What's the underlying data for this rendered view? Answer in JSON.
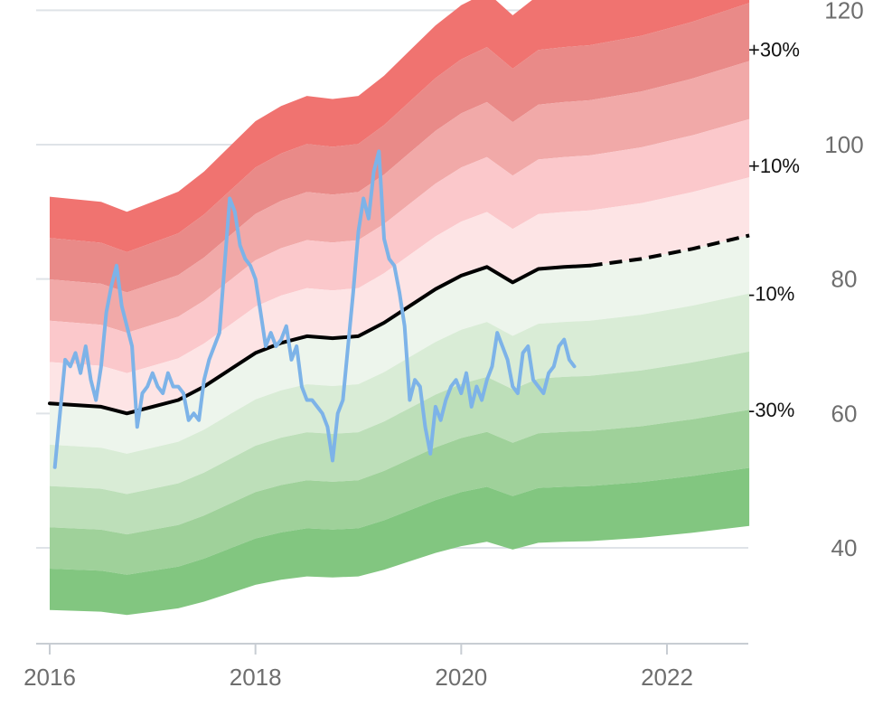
{
  "chart_data": {
    "type": "area",
    "title": "",
    "xlabel": "",
    "ylabel": "",
    "xlim": [
      2016.0,
      2022.8
    ],
    "ylim": [
      30,
      120
    ],
    "grid": true,
    "legend": "none",
    "x_ticks": [
      2016,
      2018,
      2020,
      2022
    ],
    "x_tick_labels": [
      "2016",
      "2018",
      "2020",
      "2022"
    ],
    "y_ticks": [
      40,
      60,
      80,
      100,
      120
    ],
    "y_tick_labels": [
      "40",
      "60",
      "80",
      "100",
      "120"
    ],
    "band_labels": [
      "+30%",
      "+10%",
      "-10%",
      "-30%"
    ],
    "base_line": {
      "x": [
        2016.0,
        2016.5,
        2016.75,
        2017.0,
        2017.25,
        2017.5,
        2017.75,
        2018.0,
        2018.25,
        2018.5,
        2018.75,
        2019.0,
        2019.25,
        2019.5,
        2019.75,
        2020.0,
        2020.25,
        2020.5,
        2020.75,
        2021.0,
        2021.25
      ],
      "y": [
        61.5,
        61.0,
        60.0,
        61.0,
        62.0,
        64.0,
        66.5,
        69.0,
        70.5,
        71.5,
        71.2,
        71.5,
        73.5,
        76.0,
        78.5,
        80.5,
        81.8,
        79.5,
        81.5,
        81.8,
        82.0
      ]
    },
    "projection_line": {
      "x": [
        2021.25,
        2021.75,
        2022.25,
        2022.8
      ],
      "y": [
        82.0,
        83.0,
        84.5,
        86.5
      ]
    },
    "bands": [
      {
        "offset": 0.5,
        "color": "#f07370"
      },
      {
        "offset": 0.4,
        "color": "#e98a88"
      },
      {
        "offset": 0.3,
        "color": "#f1a9a8"
      },
      {
        "offset": 0.2,
        "color": "#fbc8cb"
      },
      {
        "offset": 0.1,
        "color": "#fde4e5"
      },
      {
        "offset": -0.1,
        "color": "#edf5ec"
      },
      {
        "offset": -0.2,
        "color": "#d9ecd6"
      },
      {
        "offset": -0.3,
        "color": "#bddfb9"
      },
      {
        "offset": -0.4,
        "color": "#9fd19a"
      },
      {
        "offset": -0.5,
        "color": "#82c680"
      }
    ],
    "series": [
      {
        "x": [
          2016.05,
          2016.1,
          2016.15,
          2016.2,
          2016.25,
          2016.3,
          2016.35,
          2016.4,
          2016.45,
          2016.5,
          2016.55,
          2016.6,
          2016.65,
          2016.7,
          2016.75,
          2016.8,
          2016.85,
          2016.9,
          2016.95,
          2017.0,
          2017.05,
          2017.1,
          2017.15,
          2017.2,
          2017.25,
          2017.3,
          2017.35,
          2017.4,
          2017.45,
          2017.5,
          2017.55,
          2017.6,
          2017.65,
          2017.7,
          2017.75,
          2017.8,
          2017.85,
          2017.9,
          2017.95,
          2018.0,
          2018.05,
          2018.1,
          2018.15,
          2018.2,
          2018.25,
          2018.3,
          2018.35,
          2018.4,
          2018.45,
          2018.5,
          2018.55,
          2018.6,
          2018.65,
          2018.7,
          2018.75,
          2018.8,
          2018.85,
          2018.9,
          2018.95,
          2019.0,
          2019.05,
          2019.1,
          2019.15,
          2019.2,
          2019.25,
          2019.3,
          2019.35,
          2019.4,
          2019.45,
          2019.5,
          2019.55,
          2019.6,
          2019.65,
          2019.7,
          2019.75,
          2019.8,
          2019.85,
          2019.9,
          2019.95,
          2020.0,
          2020.05,
          2020.1,
          2020.15,
          2020.2,
          2020.25,
          2020.3,
          2020.35,
          2020.4,
          2020.45,
          2020.5,
          2020.55,
          2020.6,
          2020.65,
          2020.7,
          2020.75,
          2020.8,
          2020.85,
          2020.9,
          2020.95,
          2021.0,
          2021.05,
          2021.1
        ],
        "y": [
          52,
          60,
          68,
          67,
          69,
          66,
          70,
          65,
          62,
          67,
          75,
          79,
          82,
          76,
          73,
          70,
          58,
          63,
          64,
          66,
          64,
          63,
          66,
          64,
          64,
          63,
          59,
          60,
          59,
          65,
          68,
          70,
          72,
          82,
          92,
          90,
          85,
          83,
          82,
          80,
          75,
          70,
          72,
          70,
          71,
          73,
          68,
          70,
          64,
          62,
          62,
          61,
          60,
          58,
          53,
          60,
          62,
          70,
          78,
          87,
          92,
          89,
          96,
          99,
          86,
          83,
          82,
          78,
          73,
          62,
          65,
          64,
          58,
          54,
          61,
          59,
          62,
          64,
          65,
          63,
          66,
          61,
          64,
          62,
          65,
          67,
          72,
          70,
          68,
          64,
          63,
          69,
          70,
          65,
          64,
          63,
          66,
          67,
          70,
          71,
          68,
          67
        ]
      }
    ]
  }
}
